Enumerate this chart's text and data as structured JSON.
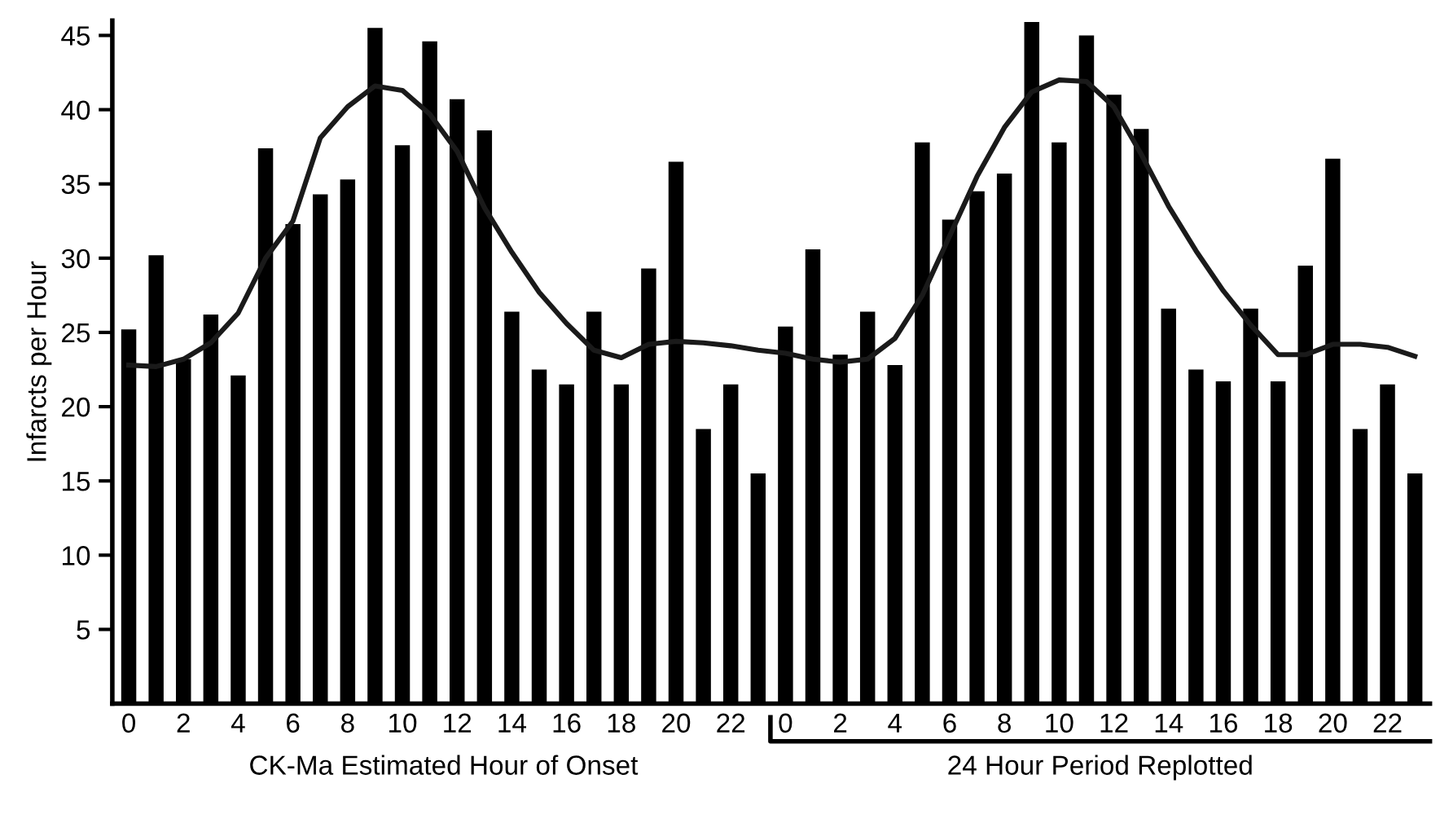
{
  "chart_data": {
    "type": "bar",
    "ylabel": "Infarcts per Hour",
    "categories": [
      "0",
      null,
      "2",
      null,
      "4",
      null,
      "6",
      null,
      "8",
      null,
      "10",
      null,
      "12",
      null,
      "14",
      null,
      "16",
      null,
      "18",
      null,
      "20",
      null,
      "22",
      null,
      "0",
      null,
      "2",
      null,
      "4",
      null,
      "6",
      null,
      "8",
      null,
      "10",
      null,
      "12",
      null,
      "14",
      null,
      "16",
      null,
      "18",
      null,
      "20",
      null,
      "22",
      null
    ],
    "series": [
      {
        "color": "#000000",
        "values": [
          25.2,
          30.2,
          23.2,
          26.2,
          22.1,
          37.4,
          32.3,
          34.3,
          35.3,
          45.5,
          37.6,
          44.6,
          40.7,
          38.6,
          26.4,
          22.5,
          21.5,
          26.4,
          21.5,
          29.3,
          36.5,
          18.5,
          21.5,
          15.5,
          25.4,
          30.6,
          23.5,
          26.4,
          22.8,
          37.8,
          32.6,
          34.5,
          35.7,
          45.9,
          37.8,
          45.0,
          41.0,
          38.7,
          26.6,
          22.5,
          21.7,
          26.6,
          21.7,
          29.5,
          36.7,
          18.5,
          21.5,
          15.5
        ]
      },
      {
        "type": "line",
        "color": "#1a1a1a",
        "values": [
          22.8,
          22.7,
          23.2,
          24.3,
          26.3,
          30.0,
          32.5,
          38.1,
          40.2,
          41.6,
          41.3,
          39.7,
          37.2,
          33.4,
          30.4,
          27.7,
          25.6,
          23.8,
          23.3,
          24.2,
          24.4,
          24.3,
          24.1,
          23.8,
          23.6,
          23.2,
          23.0,
          23.2,
          24.6,
          27.5,
          31.5,
          35.5,
          38.8,
          41.2,
          42.0,
          41.9,
          40.2,
          37.0,
          33.5,
          30.5,
          27.8,
          25.5,
          23.5,
          23.5,
          24.2,
          24.2,
          24.0,
          23.4
        ]
      }
    ],
    "ylim": [
      0,
      46
    ],
    "yticks": [
      5,
      10,
      15,
      20,
      25,
      30,
      35,
      40,
      45
    ],
    "grid": false,
    "legend": false,
    "annotations": [
      "CK-Ma Estimated Hour of Onset",
      "24 Hour Period Replotted"
    ]
  }
}
